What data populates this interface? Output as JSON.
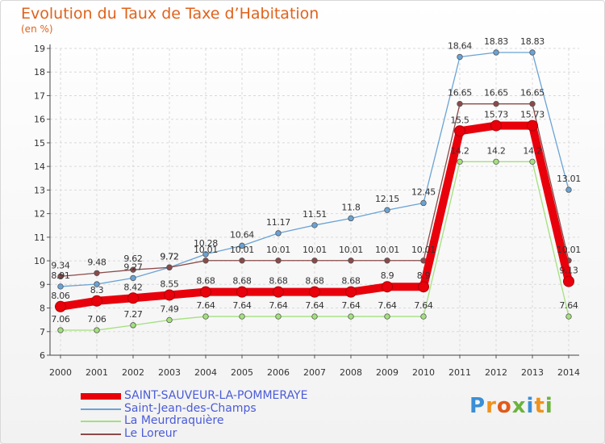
{
  "header": {
    "title": "Evolution du Taux de Taxe d’Habitation",
    "subtitle": "(en %)"
  },
  "brand": {
    "text": "Proxiti",
    "colors": [
      "#3a8fd6",
      "#f0921c",
      "#e05a1a",
      "#6cb33e",
      "#3a8fd6",
      "#f0921c",
      "#6cb33e"
    ]
  },
  "chart_data": {
    "type": "line",
    "title": "Evolution du Taux de Taxe d’Habitation",
    "ylabel": "(en %)",
    "xlabel": "",
    "x": [
      "2000",
      "2001",
      "2002",
      "2003",
      "2004",
      "2005",
      "2006",
      "2007",
      "2008",
      "2009",
      "2010",
      "2011",
      "2012",
      "2013",
      "2014"
    ],
    "ylim": [
      6,
      19
    ],
    "yticks": [
      "6",
      "7",
      "8",
      "9",
      "10",
      "11",
      "12",
      "13",
      "14",
      "15",
      "16",
      "17",
      "18",
      "19"
    ],
    "grid": true,
    "legend_position": "bottom-left",
    "series": [
      {
        "name": "SAINT-SAUVEUR-LA-POMMERAYE",
        "color": "#e8000b",
        "emphasis": true,
        "values": [
          8.06,
          8.3,
          8.42,
          8.55,
          8.68,
          8.68,
          8.68,
          8.68,
          8.68,
          8.9,
          8.9,
          15.5,
          15.73,
          15.73,
          9.13
        ],
        "labels": [
          "8.06",
          "8.3",
          "8.42",
          "8.55",
          "8.68",
          "8.68",
          "8.68",
          "8.68",
          "8.68",
          "8.9",
          "8.9",
          "15.5",
          "15.73",
          "15.73",
          "9.13"
        ]
      },
      {
        "name": "Saint-Jean-des-Champs",
        "color": "#6aa3d5",
        "values": [
          8.91,
          9.01,
          9.27,
          9.72,
          10.28,
          10.64,
          11.17,
          11.51,
          11.8,
          12.15,
          12.45,
          18.64,
          18.83,
          18.83,
          13.01
        ],
        "labels": [
          "8.91",
          "",
          "9.27",
          "9.72",
          "10.28",
          "10.64",
          "11.17",
          "11.51",
          "11.8",
          "12.15",
          "12.45",
          "18.64",
          "18.83",
          "18.83",
          "13.01"
        ]
      },
      {
        "name": "La Meurdraquière",
        "color": "#a4e07e",
        "values": [
          7.06,
          7.06,
          7.27,
          7.49,
          7.64,
          7.64,
          7.64,
          7.64,
          7.64,
          7.64,
          7.64,
          14.2,
          14.2,
          14.2,
          7.64
        ],
        "labels": [
          "7.06",
          "7.06",
          "7.27",
          "7.49",
          "7.64",
          "7.64",
          "7.64",
          "7.64",
          "7.64",
          "7.64",
          "7.64",
          "14.2",
          "14.2",
          "14.2",
          "7.64"
        ]
      },
      {
        "name": "Le Loreur",
        "color": "#8b4a4a",
        "values": [
          9.34,
          9.48,
          9.62,
          9.72,
          10.01,
          10.01,
          10.01,
          10.01,
          10.01,
          10.01,
          10.01,
          16.65,
          16.65,
          16.65,
          10.01
        ],
        "labels": [
          "9.34",
          "9.48",
          "9.62",
          "9.72",
          "10.01",
          "10.01",
          "10.01",
          "10.01",
          "10.01",
          "10.01",
          "10.01",
          "16.65",
          "16.65",
          "16.65",
          "10.01"
        ]
      }
    ]
  }
}
